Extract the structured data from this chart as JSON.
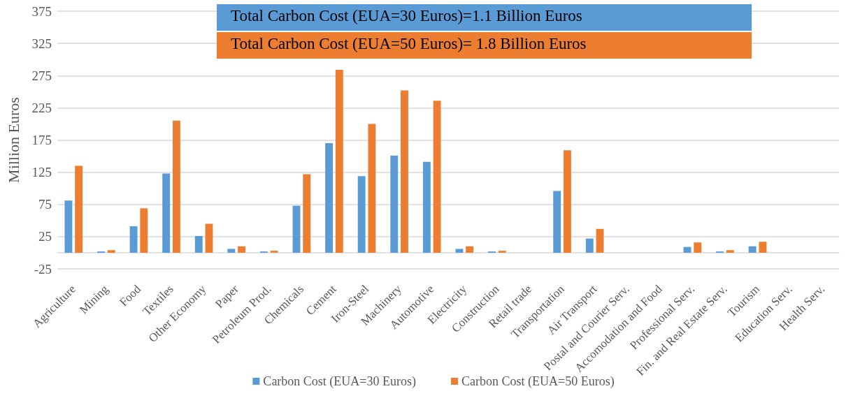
{
  "chart_data": {
    "type": "bar",
    "ylabel": "Million Euros",
    "categories": [
      "Agriculture",
      "Mining",
      "Food",
      "Textiles",
      "Other Economy",
      "Paper",
      "Petroleum Prod.",
      "Chemicals",
      "Cement",
      "Iron-Steel",
      "Machinery",
      "Automotive",
      "Electricity",
      "Construction",
      "Retail trade",
      "Transportation",
      "Air Transport",
      "Postal and Courier Serv.",
      "Accomodation and Food",
      "Professional Serv.",
      "Fin. and Real Estate Serv.",
      "Tourism",
      "Education Serv.",
      "Health Serv."
    ],
    "series": [
      {
        "name": "Carbon Cost (EUA=30 Euros)",
        "color": "#5b9bd5",
        "values": [
          81,
          2,
          41,
          123,
          26,
          6,
          2,
          73,
          170,
          119,
          151,
          141,
          6,
          2,
          0,
          96,
          22,
          0,
          0,
          9,
          2,
          10,
          0,
          0
        ]
      },
      {
        "name": "Carbon Cost (EUA=50 Euros)",
        "color": "#ed7d31",
        "values": [
          135,
          4,
          69,
          205,
          45,
          10,
          3,
          122,
          284,
          200,
          252,
          236,
          10,
          3,
          0,
          159,
          37,
          0,
          0,
          16,
          4,
          17,
          0,
          0
        ]
      }
    ],
    "annotations": [
      "Total Carbon Cost (EUA=30 Euros)=1.1 Billion Euros",
      "Total Carbon Cost (EUA=50 Euros)= 1.8 Billion Euros"
    ],
    "ylim": [
      -25,
      375
    ],
    "yticks": [
      -25,
      25,
      75,
      125,
      175,
      225,
      275,
      325,
      375
    ],
    "grid": "y",
    "legend": "bottom"
  }
}
